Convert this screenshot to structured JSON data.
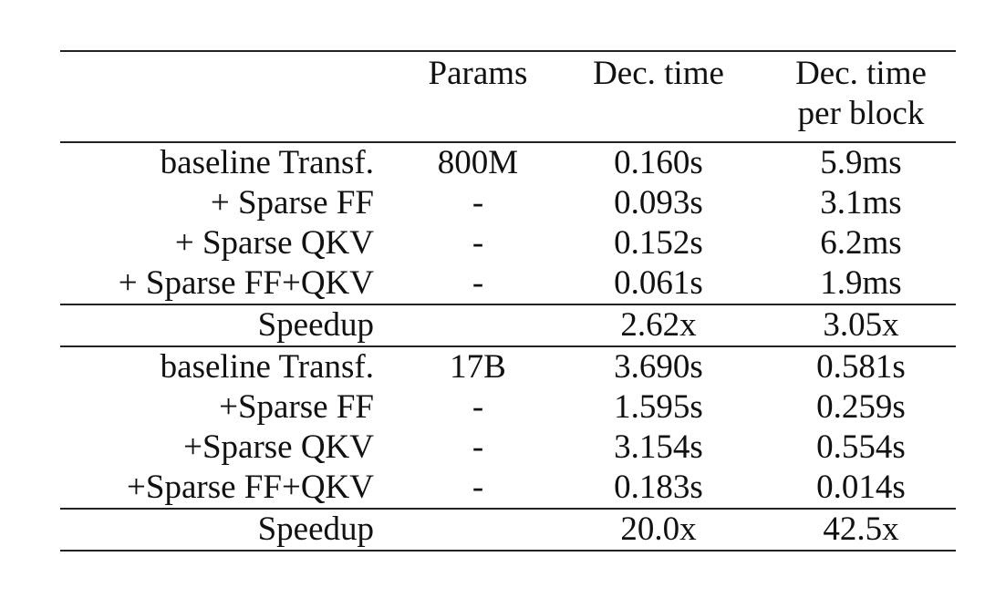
{
  "table": {
    "headers": {
      "label": "",
      "params": "Params",
      "dec_time": "Dec. time",
      "dec_time_block_line1": "Dec. time",
      "dec_time_block_line2": "per block"
    },
    "groups": [
      {
        "rows": [
          {
            "label": "baseline Transf.",
            "params": "800M",
            "dec_time": "0.160s",
            "per_block": "5.9ms"
          },
          {
            "label": "+ Sparse FF",
            "params": "-",
            "dec_time": "0.093s",
            "per_block": "3.1ms"
          },
          {
            "label": "+ Sparse QKV",
            "params": "-",
            "dec_time": "0.152s",
            "per_block": "6.2ms"
          },
          {
            "label": "+ Sparse FF+QKV",
            "params": "-",
            "dec_time": "0.061s",
            "per_block": "1.9ms"
          }
        ],
        "speedup": {
          "label": "Speedup",
          "params": "",
          "dec_time": "2.62x",
          "per_block": "3.05x"
        }
      },
      {
        "rows": [
          {
            "label": "baseline Transf.",
            "params": "17B",
            "dec_time": "3.690s",
            "per_block": "0.581s"
          },
          {
            "label": "+Sparse FF",
            "params": "-",
            "dec_time": "1.595s",
            "per_block": "0.259s"
          },
          {
            "label": "+Sparse QKV",
            "params": "-",
            "dec_time": "3.154s",
            "per_block": "0.554s"
          },
          {
            "label": "+Sparse FF+QKV",
            "params": "-",
            "dec_time": "0.183s",
            "per_block": "0.014s"
          }
        ],
        "speedup": {
          "label": "Speedup",
          "params": "",
          "dec_time": "20.0x",
          "per_block": "42.5x"
        }
      }
    ]
  }
}
